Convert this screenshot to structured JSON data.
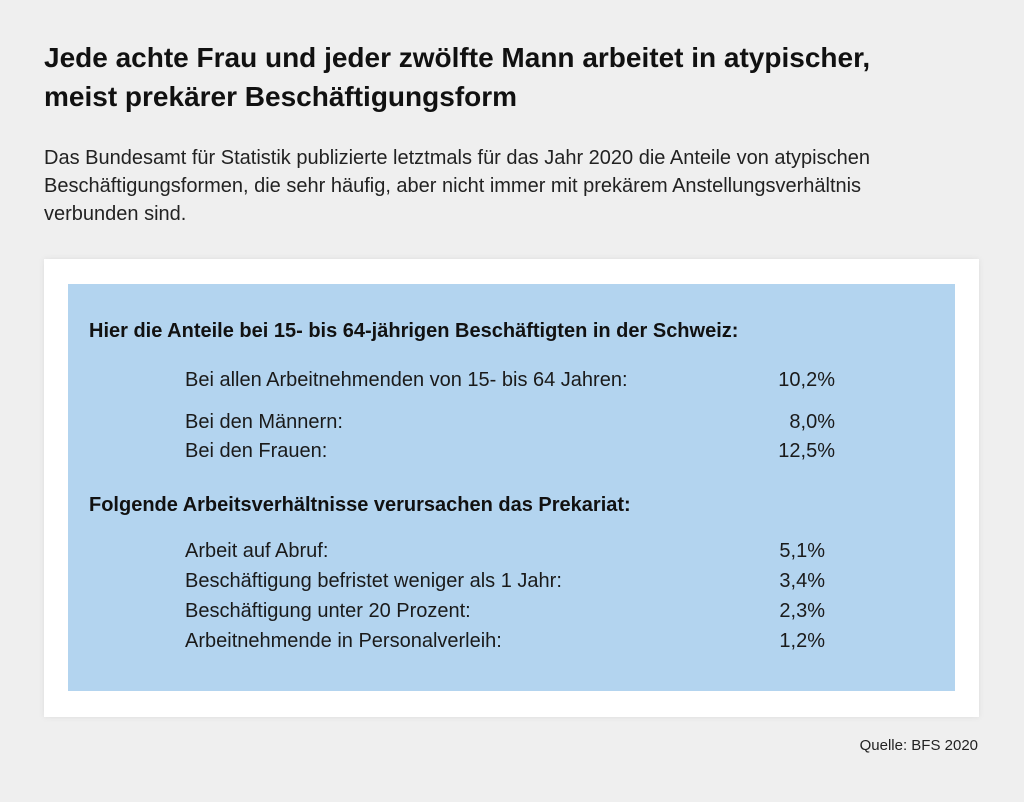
{
  "header": {
    "title": "Jede achte Frau und jeder zwölfte Mann arbeitet in atypischer, meist prekärer Beschäftigungsform",
    "subtitle": "Das Bundesamt für Statistik publizierte letztmals für das Jahr 2020 die Anteile von atypischen Beschäftigungsformen, die sehr häufig, aber nicht immer mit prekärem Anstellungsverhältnis verbunden sind."
  },
  "section1": {
    "heading": "Hier die Anteile bei 15- bis 64-jährigen Beschäftigten in der Schweiz:",
    "rows": [
      {
        "label": "Bei allen Arbeitnehmenden von 15- bis 64 Jahren:",
        "value": "10,2%"
      },
      {
        "label": "Bei den Männern:",
        "value": "8,0%"
      },
      {
        "label": "Bei den Frauen:",
        "value": "12,5%"
      }
    ]
  },
  "section2": {
    "heading": "Folgende Arbeitsverhältnisse verursachen das Prekariat:",
    "rows": [
      {
        "label": "Arbeit auf Abruf:",
        "value": "5,1%"
      },
      {
        "label": "Beschäftigung befristet weniger als 1 Jahr:",
        "value": "3,4%"
      },
      {
        "label": "Beschäftigung unter 20 Prozent:",
        "value": "2,3%"
      },
      {
        "label": "Arbeitnehmende in Personalverleih:",
        "value": "1,2%"
      }
    ]
  },
  "footer": {
    "source": "Quelle: BFS 2020"
  },
  "colors": {
    "background": "#efefef",
    "card": "#ffffff",
    "panel": "#b3d4ef"
  }
}
